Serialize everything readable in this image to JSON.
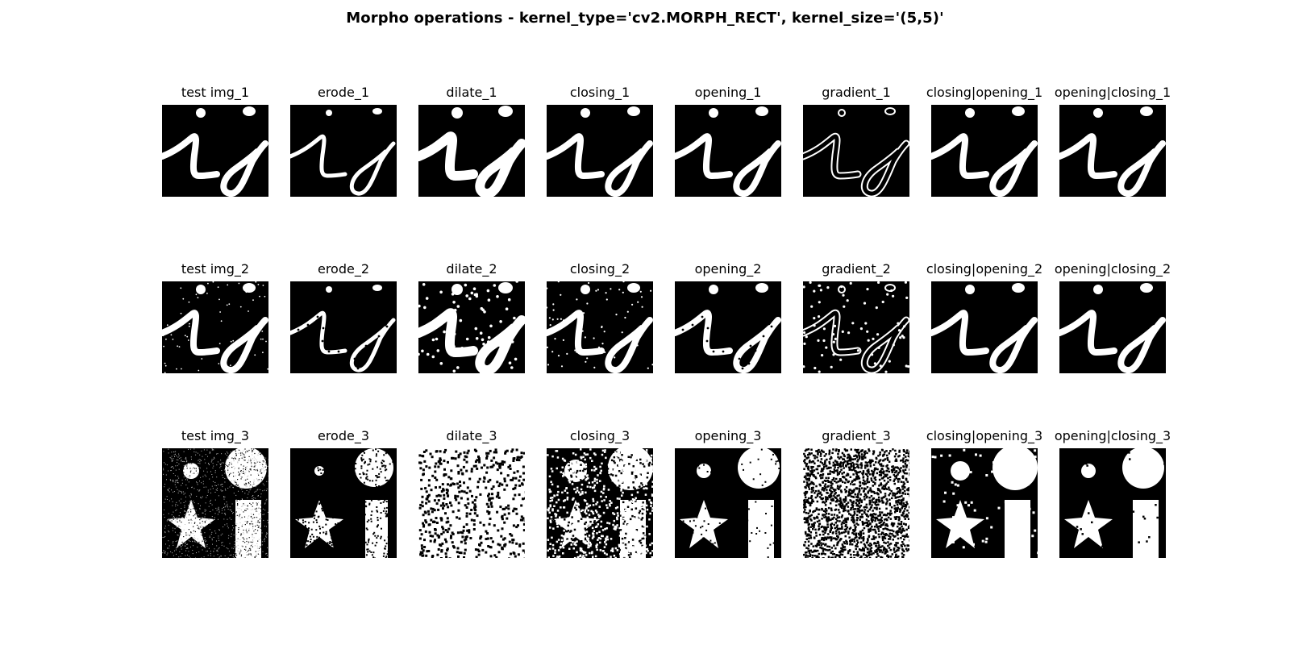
{
  "figure": {
    "title": "Morpho operations - kernel_type='cv2.MORPH_RECT', kernel_size='(5,5)'"
  },
  "rows": [
    {
      "content": "letters-ij",
      "panels": [
        {
          "title": "test img_1"
        },
        {
          "title": "erode_1"
        },
        {
          "title": "dilate_1"
        },
        {
          "title": "closing_1"
        },
        {
          "title": "opening_1"
        },
        {
          "title": "gradient_1"
        },
        {
          "title": "closing|opening_1"
        },
        {
          "title": "opening|closing_1"
        }
      ]
    },
    {
      "content": "letters-ij-noisy",
      "panels": [
        {
          "title": "test img_2"
        },
        {
          "title": "erode_2"
        },
        {
          "title": "dilate_2"
        },
        {
          "title": "closing_2"
        },
        {
          "title": "opening_2"
        },
        {
          "title": "gradient_2"
        },
        {
          "title": "closing|opening_2"
        },
        {
          "title": "opening|closing_2"
        }
      ]
    },
    {
      "content": "shapes-noisy",
      "panels": [
        {
          "title": "test img_3"
        },
        {
          "title": "erode_3"
        },
        {
          "title": "dilate_3"
        },
        {
          "title": "closing_3"
        },
        {
          "title": "opening_3"
        },
        {
          "title": "gradient_3"
        },
        {
          "title": "closing|opening_3"
        },
        {
          "title": "opening|closing_3"
        }
      ]
    }
  ],
  "colors": {
    "background": "#ffffff",
    "image_background": "#000000",
    "foreground": "#ffffff"
  }
}
